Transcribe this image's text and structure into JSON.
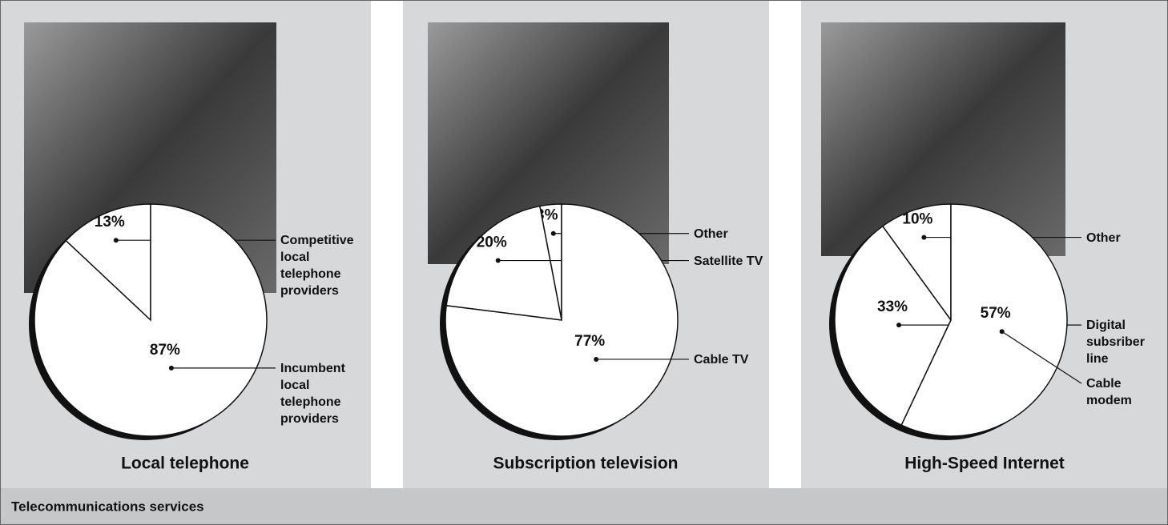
{
  "footer": "Telecommunications services",
  "chart_data": [
    {
      "type": "pie",
      "title": "Local telephone",
      "categories": [
        "Competitive local telephone providers",
        "Incumbent local telephone providers"
      ],
      "values": [
        13,
        87
      ],
      "value_labels": [
        "13%",
        "87%"
      ],
      "color": "#ffffff"
    },
    {
      "type": "pie",
      "title": "Subscription television",
      "categories": [
        "Other",
        "Satellite TV",
        "Cable TV"
      ],
      "values": [
        3,
        20,
        77
      ],
      "value_labels": [
        "3%",
        "20%",
        "77%"
      ],
      "color": "#ffffff"
    },
    {
      "type": "pie",
      "title": "High-Speed Internet",
      "categories": [
        "Other",
        "Digital subsriber line",
        "Cable modem"
      ],
      "values": [
        10,
        33,
        57
      ],
      "value_labels": [
        "10%",
        "33%",
        "57%"
      ],
      "color": "#ffffff"
    }
  ]
}
